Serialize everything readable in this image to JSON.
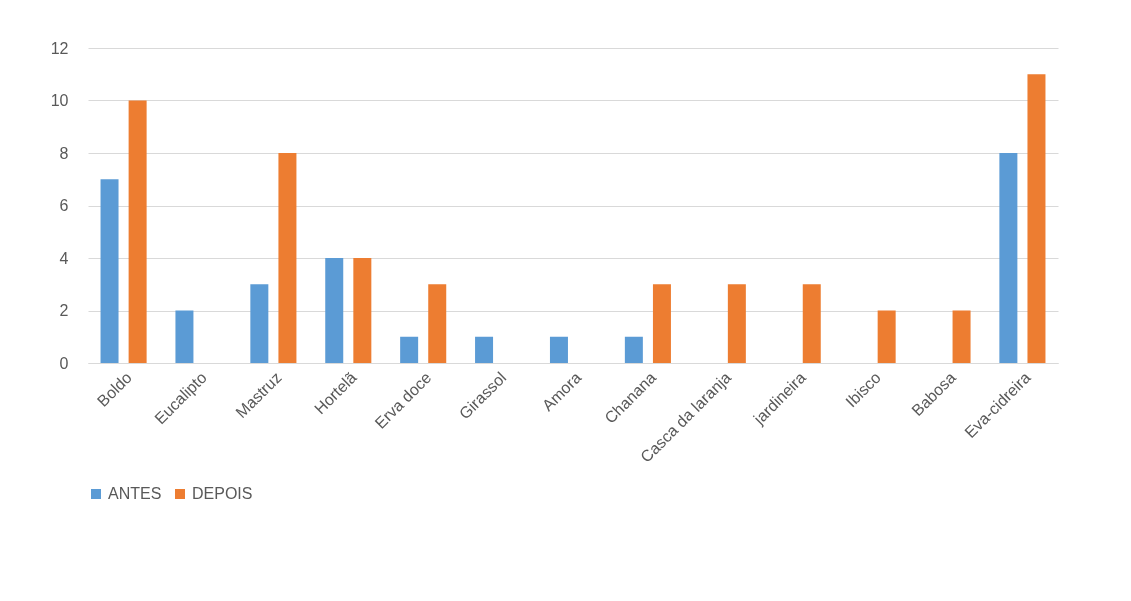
{
  "chart_data": {
    "type": "bar",
    "categories": [
      "Boldo",
      "Eucalipto",
      "Mastruz",
      "Hortelã",
      "Erva doce",
      "Girassol",
      "Amora",
      "Chanana",
      "Casca da laranja",
      "jardineira",
      "Ibisco",
      "Babosa",
      "Eva-cidreira"
    ],
    "series": [
      {
        "name": "ANTES",
        "color": "#5b9bd5",
        "values": [
          7,
          2,
          3,
          4,
          1,
          1,
          1,
          1,
          0,
          0,
          0,
          0,
          8
        ]
      },
      {
        "name": "DEPOIS",
        "color": "#ed7d31",
        "values": [
          10,
          0,
          8,
          4,
          3,
          0,
          0,
          3,
          3,
          3,
          2,
          2,
          11
        ]
      }
    ],
    "ylim": [
      0,
      12
    ],
    "yticks": [
      0,
      2,
      4,
      6,
      8,
      10,
      12
    ],
    "grid": "y",
    "legend": "bottom"
  }
}
